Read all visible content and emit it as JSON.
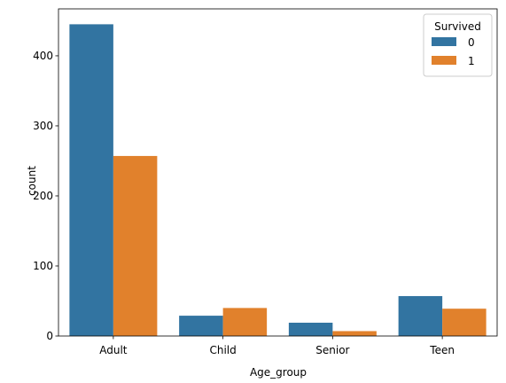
{
  "chart_data": {
    "type": "bar",
    "title": "",
    "xlabel": "Age_group",
    "ylabel": "count",
    "categories": [
      "Adult",
      "Child",
      "Senior",
      "Teen"
    ],
    "series": [
      {
        "name": "0",
        "color": "#3274a1",
        "values": [
          445,
          29,
          19,
          57
        ]
      },
      {
        "name": "1",
        "color": "#e1812c",
        "values": [
          257,
          40,
          7,
          39
        ]
      }
    ],
    "ylim": [
      0,
      467
    ],
    "yticks": [
      0,
      100,
      200,
      300,
      400
    ],
    "grid": false,
    "legend": {
      "title": "Survived",
      "position": "top-right"
    }
  }
}
